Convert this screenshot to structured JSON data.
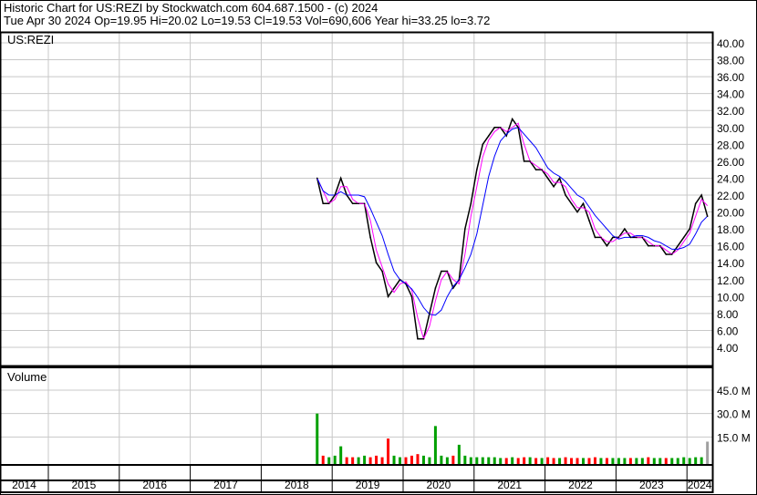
{
  "header": {
    "line1": "Historic Chart for US:REZI by Stockwatch.com 604.687.1500 - (c) 2024",
    "line2": "Tue Apr 30 2024   Op=19.95   Hi=20.02   Lo=19.53   Cl=19.53   Vol=690,606   Year hi=33.25   lo=3.72"
  },
  "chart_data": [
    {
      "type": "line",
      "title": "US:REZI",
      "ylim": [
        3,
        41
      ],
      "yticks": [
        "4.00",
        "6.00",
        "8.00",
        "10.00",
        "12.00",
        "14.00",
        "16.00",
        "18.00",
        "20.00",
        "22.00",
        "24.00",
        "26.00",
        "28.00",
        "30.00",
        "32.00",
        "34.00",
        "36.00",
        "38.00",
        "40.00"
      ],
      "xticks": [
        "2014",
        "2015",
        "2016",
        "2017",
        "2018",
        "2019",
        "2020",
        "2021",
        "2022",
        "2023",
        "2024"
      ],
      "grid": true,
      "colors": {
        "price": "#000000",
        "short_ma": "#ff00ff",
        "long_ma": "#0000ff"
      },
      "series": [
        {
          "dates": [
            "2018-10",
            "2018-11",
            "2018-12",
            "2019-01",
            "2019-02",
            "2019-03",
            "2019-04",
            "2019-05",
            "2019-06",
            "2019-07",
            "2019-08",
            "2019-09",
            "2019-10",
            "2019-11",
            "2019-12",
            "2020-01",
            "2020-02",
            "2020-03",
            "2020-04",
            "2020-05",
            "2020-06",
            "2020-07",
            "2020-08",
            "2020-09",
            "2020-10",
            "2020-11",
            "2020-12",
            "2021-01",
            "2021-02",
            "2021-03",
            "2021-04",
            "2021-05",
            "2021-06",
            "2021-07",
            "2021-08",
            "2021-09",
            "2021-10",
            "2021-11",
            "2021-12",
            "2022-01",
            "2022-02",
            "2022-03",
            "2022-04",
            "2022-05",
            "2022-06",
            "2022-07",
            "2022-08",
            "2022-09",
            "2022-10",
            "2022-11",
            "2022-12",
            "2023-01",
            "2023-02",
            "2023-03",
            "2023-04",
            "2023-05",
            "2023-06",
            "2023-07",
            "2023-08",
            "2023-09",
            "2023-10",
            "2023-11",
            "2023-12",
            "2024-01",
            "2024-02",
            "2024-03",
            "2024-04"
          ],
          "values": [
            24,
            21,
            21,
            22,
            24,
            22,
            21,
            21,
            21,
            17,
            14,
            13,
            10,
            11,
            12,
            11.5,
            10,
            5,
            5,
            8,
            11,
            13,
            13,
            11,
            12,
            18,
            21,
            25,
            28,
            29,
            30,
            30,
            29,
            31,
            30,
            26,
            26,
            25,
            25,
            24,
            23,
            24,
            22,
            21,
            20,
            21,
            19,
            17,
            17,
            16,
            17,
            17,
            18,
            17,
            17,
            17,
            16,
            16,
            16,
            15,
            15,
            16,
            17,
            18,
            21,
            22,
            19.5
          ]
        }
      ]
    },
    {
      "type": "bar",
      "title": "Volume",
      "yticks": [
        "15.0 M",
        "30.0 M",
        "45.0 M"
      ],
      "ylim": [
        0,
        52
      ],
      "colors": {
        "up": "#00a000",
        "down": "#ff0000",
        "current": "#a0a0a0"
      },
      "values": [
        30,
        3,
        2,
        3,
        9,
        2,
        2,
        2,
        3,
        2,
        3,
        2,
        14,
        3,
        2,
        2,
        3,
        4,
        3,
        2,
        22,
        3,
        2,
        3,
        10,
        3,
        2,
        2,
        2,
        2,
        2,
        1.5,
        1.5,
        2,
        1.5,
        2,
        2,
        1.5,
        1.5,
        2,
        1.5,
        1.5,
        2,
        1.5,
        1.5,
        1.5,
        1.5,
        2,
        1.5,
        1.5,
        1.5,
        1.5,
        1.5,
        1.5,
        1.5,
        1.5,
        2,
        1.5,
        1.5,
        1.5,
        1.5,
        1.5,
        2,
        1.5,
        2,
        2,
        12
      ]
    }
  ]
}
